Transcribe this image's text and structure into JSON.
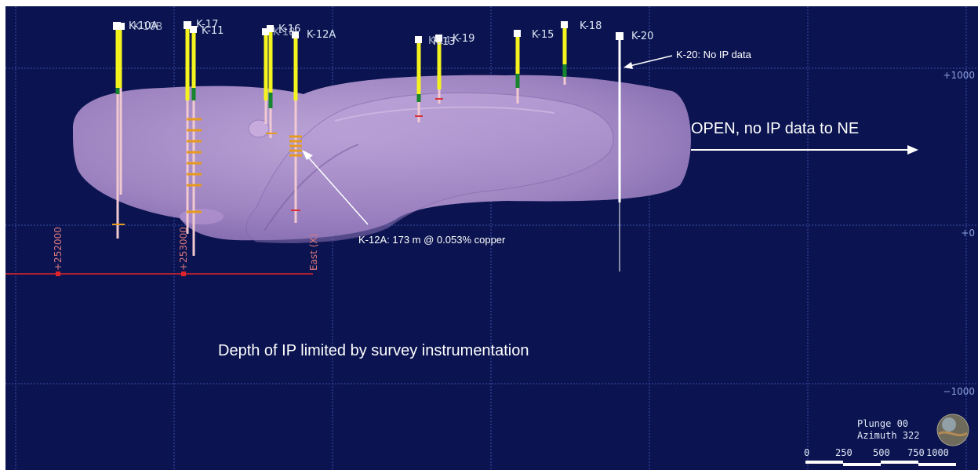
{
  "drill_holes": [
    {
      "id": "k-10a",
      "label": "K-10A"
    },
    {
      "id": "k-10b",
      "label": "K-10B"
    },
    {
      "id": "k-17",
      "label": "K-17"
    },
    {
      "id": "k-11",
      "label": "K-11"
    },
    {
      "id": "k-16",
      "label": "K-16"
    },
    {
      "id": "k-18b",
      "label": "K-18"
    },
    {
      "id": "k-12a",
      "label": "K-12A"
    },
    {
      "id": "k-14",
      "label": "K-14"
    },
    {
      "id": "k-13",
      "label": "K-13"
    },
    {
      "id": "k-19",
      "label": "K-19"
    },
    {
      "id": "k-15",
      "label": "K-15"
    },
    {
      "id": "k-18",
      "label": "K-18"
    },
    {
      "id": "k-20",
      "label": "K-20"
    }
  ],
  "elevation_ticks": [
    "+1000",
    "+0",
    "−1000"
  ],
  "easting_axis": {
    "ticks": [
      "+252000",
      "+253000"
    ],
    "label": "East (X)"
  },
  "annotations": {
    "k20_note": "K-20: No IP data",
    "open_note": "OPEN, no IP data to NE",
    "k12a_note": "K-12A: 173 m @ 0.053% copper",
    "depth_note": "Depth of IP limited by survey instrumentation"
  },
  "view": {
    "plunge": "Plunge 00",
    "azimuth": "Azimuth 322"
  },
  "scale_bar": {
    "ticks": [
      "0",
      "250",
      "500",
      "750",
      "1000"
    ]
  },
  "colors": {
    "background": "#0b1450",
    "grid": "#3b4ea8",
    "ip_body": "#b59ad6",
    "drill_yellow": "#f4f31e",
    "drill_green": "#16852d",
    "drill_pink": "#f1c9d0",
    "easting_axis": "#e0242c",
    "mineralization": "#e69a1f"
  }
}
